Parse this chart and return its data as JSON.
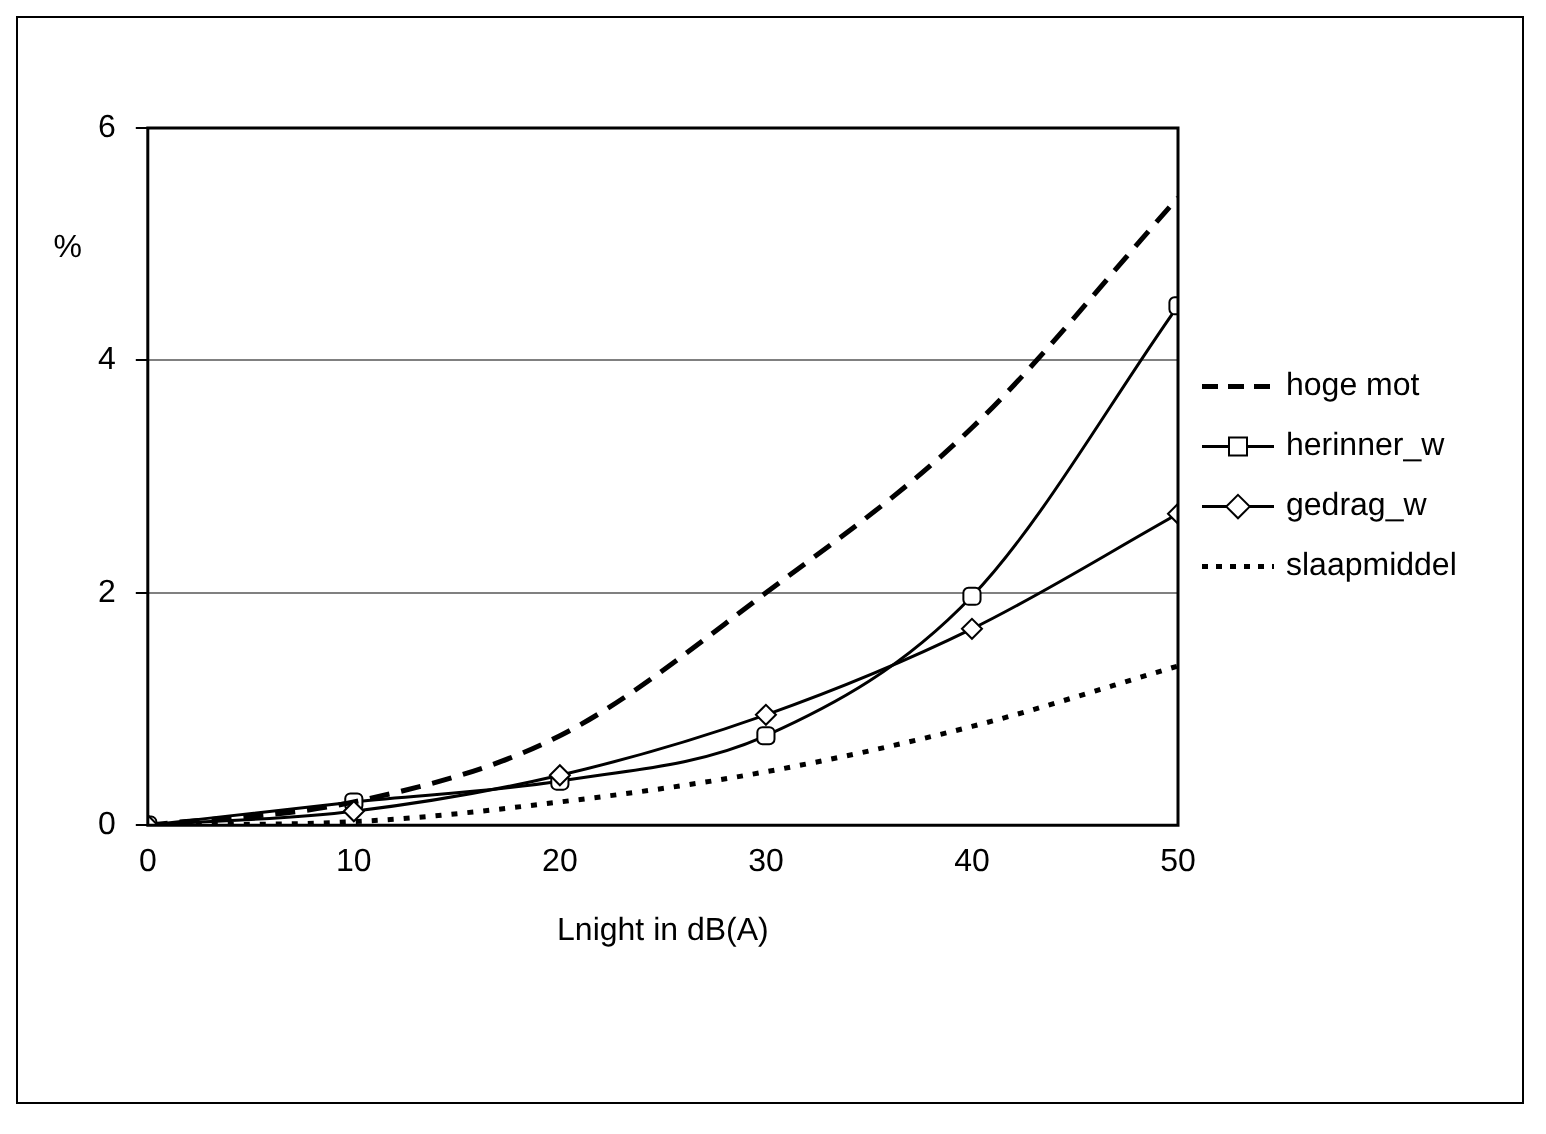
{
  "chart_data": {
    "type": "line",
    "xlabel": "Lnight in dB(A)",
    "ylabel": "%",
    "x": [
      0,
      10,
      20,
      30,
      40,
      50
    ],
    "xlim": [
      0,
      50
    ],
    "xticks": [
      0,
      10,
      20,
      30,
      40,
      50
    ],
    "ylim": [
      0,
      6
    ],
    "yticks": [
      0,
      2,
      4,
      6
    ],
    "grid": "y",
    "legend": "right",
    "series": [
      {
        "name": "hoge mot",
        "color": "#000000",
        "line_style": "dashed",
        "marker": "none",
        "values": [
          0,
          0.2,
          0.77,
          2.0,
          3.42,
          5.4
        ]
      },
      {
        "name": "herinner_w",
        "color": "#000000",
        "line_style": "solid",
        "marker": "square",
        "values": [
          0,
          0.2,
          0.38,
          0.77,
          1.97,
          4.47
        ]
      },
      {
        "name": "gedrag_w",
        "color": "#000000",
        "line_style": "solid",
        "marker": "diamond",
        "values": [
          0,
          0.12,
          0.43,
          0.95,
          1.69,
          2.68
        ]
      },
      {
        "name": "slaapmiddel",
        "color": "#000000",
        "line_style": "dotted",
        "marker": "none",
        "values": [
          0,
          0.03,
          0.2,
          0.46,
          0.85,
          1.37
        ]
      }
    ]
  }
}
